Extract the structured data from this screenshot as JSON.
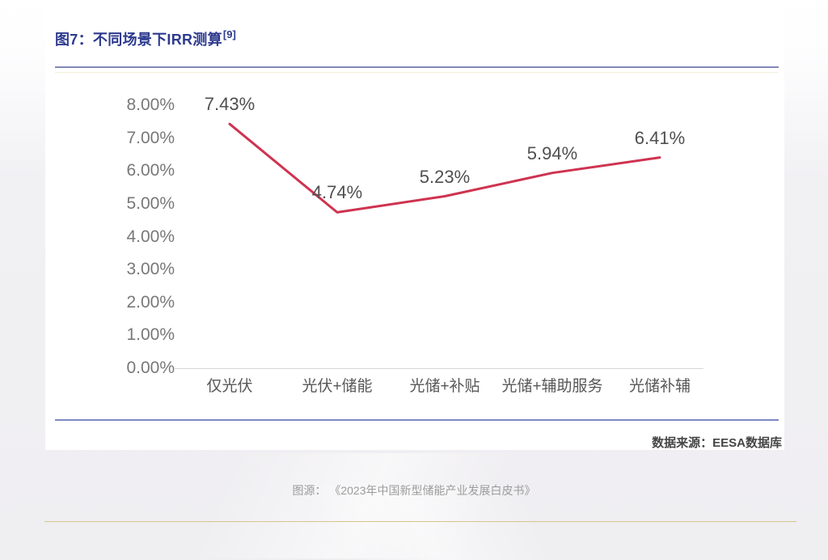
{
  "title": {
    "text": "图7：不同场景下IRR测算",
    "superscript": "[9]"
  },
  "chart_data": {
    "type": "line",
    "categories": [
      "仅光伏",
      "光伏+储能",
      "光储+补贴",
      "光储+辅助服务",
      "光储补辅"
    ],
    "values": [
      7.43,
      4.74,
      5.23,
      5.94,
      6.41
    ],
    "data_labels": [
      "7.43%",
      "4.74%",
      "5.23%",
      "5.94%",
      "6.41%"
    ],
    "y_ticks": [
      "8.00%",
      "7.00%",
      "6.00%",
      "5.00%",
      "4.00%",
      "3.00%",
      "2.00%",
      "1.00%",
      "0.00%"
    ],
    "ylim": [
      0,
      8
    ],
    "title": "不同场景下IRR测算",
    "xlabel": "",
    "ylabel": "",
    "grid": false,
    "legend_position": "none",
    "line_color": "#cf3350"
  },
  "source_note": "数据来源：EESA数据库",
  "caption": "图源： 《2023年中国新型储能产业发展白皮书》",
  "colors": {
    "title_blue": "#2d3a8e",
    "rule_blue": "#8187b7",
    "line_red": "#cf3350",
    "gold": "#d5c68c"
  }
}
